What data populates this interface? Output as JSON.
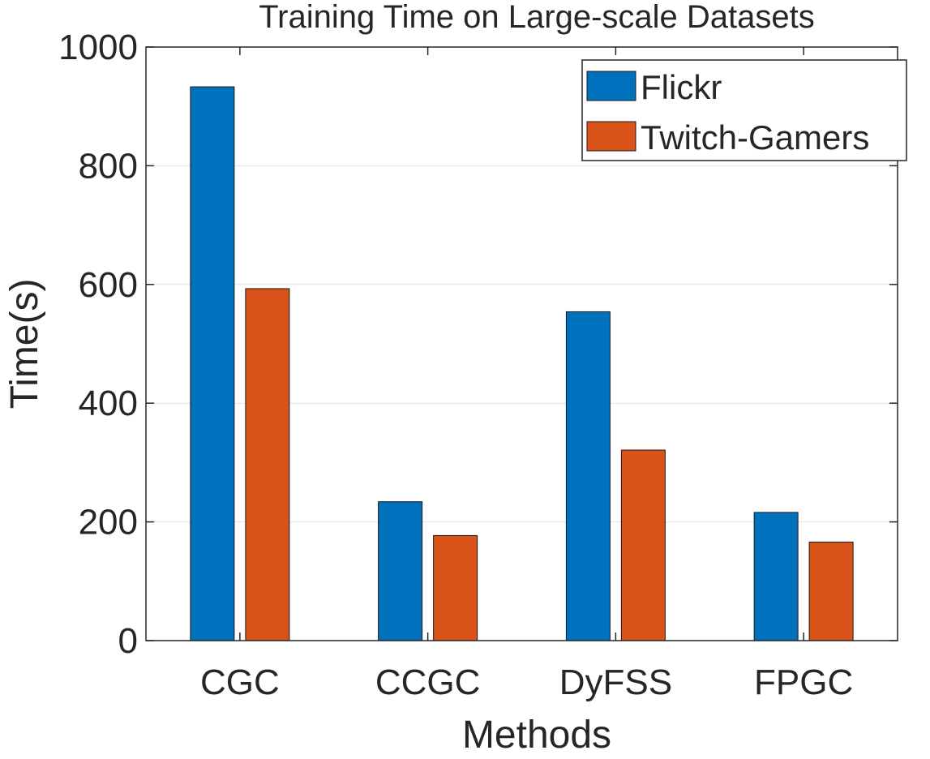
{
  "chart_data": {
    "type": "bar",
    "title": "Training Time on Large-scale Datasets",
    "xlabel": "Methods",
    "ylabel": "Time(s)",
    "categories": [
      "CGC",
      "CCGC",
      "DyFSS",
      "FPGC"
    ],
    "series": [
      {
        "name": "Flickr",
        "color": "#0072BD",
        "values": [
          933,
          234,
          554,
          216
        ]
      },
      {
        "name": "Twitch-Gamers",
        "color": "#D95319",
        "values": [
          593,
          177,
          321,
          166
        ]
      }
    ],
    "ylim": [
      0,
      1000
    ],
    "yticks": [
      0,
      200,
      400,
      600,
      800,
      1000
    ],
    "ytick_labels": [
      "0",
      "200",
      "400",
      "600",
      "800",
      "1000"
    ],
    "grid": "horizontal",
    "legend_position": "top-right"
  }
}
